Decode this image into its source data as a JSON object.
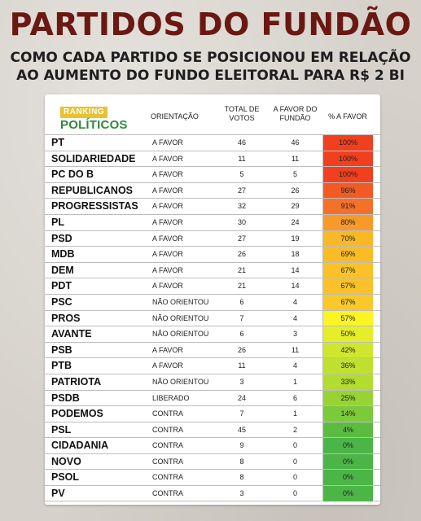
{
  "title": "PARTIDOS DO FUNDÃO",
  "subtitle_line1": "COMO CADA PARTIDO SE POSICIONOU EM RELAÇÃO",
  "subtitle_line2": "AO AUMENTO DO FUNDO ELEITORAL PARA R$ 2 BI",
  "logo": {
    "top": "RANKING",
    "bottom": "POLÍTICOS"
  },
  "headers": {
    "orientation": "ORIENTAÇÃO",
    "total_line1": "TOTAL DE",
    "total_line2": "VOTOS",
    "favor_line1": "A FAVOR DO",
    "favor_line2": "FUNDÃO",
    "percent": "% A FAVOR"
  },
  "rows": [
    {
      "party": "PT",
      "orientation": "A FAVOR",
      "total": "46",
      "favor": "46",
      "percent": "100%",
      "color": "#f0401f"
    },
    {
      "party": "SOLIDARIEDADE",
      "orientation": "A FAVOR",
      "total": "11",
      "favor": "11",
      "percent": "100%",
      "color": "#f0401f"
    },
    {
      "party": "PC DO B",
      "orientation": "A FAVOR",
      "total": "5",
      "favor": "5",
      "percent": "100%",
      "color": "#f0401f"
    },
    {
      "party": "REPUBLICANOS",
      "orientation": "A FAVOR",
      "total": "27",
      "favor": "26",
      "percent": "96%",
      "color": "#f25a24"
    },
    {
      "party": "PROGRESSISTAS",
      "orientation": "A FAVOR",
      "total": "32",
      "favor": "29",
      "percent": "91%",
      "color": "#f4712a"
    },
    {
      "party": "PL",
      "orientation": "A FAVOR",
      "total": "30",
      "favor": "24",
      "percent": "80%",
      "color": "#f79a2a"
    },
    {
      "party": "PSD",
      "orientation": "A FAVOR",
      "total": "27",
      "favor": "19",
      "percent": "70%",
      "color": "#f9b826"
    },
    {
      "party": "MDB",
      "orientation": "A FAVOR",
      "total": "26",
      "favor": "18",
      "percent": "69%",
      "color": "#f9bc27"
    },
    {
      "party": "DEM",
      "orientation": "A FAVOR",
      "total": "21",
      "favor": "14",
      "percent": "67%",
      "color": "#fac228"
    },
    {
      "party": "PDT",
      "orientation": "A FAVOR",
      "total": "21",
      "favor": "14",
      "percent": "67%",
      "color": "#fac228"
    },
    {
      "party": "PSC",
      "orientation": "NÃO ORIENTOU",
      "total": "6",
      "favor": "4",
      "percent": "67%",
      "color": "#fac828"
    },
    {
      "party": "PROS",
      "orientation": "NÃO ORIENTOU",
      "total": "7",
      "favor": "4",
      "percent": "57%",
      "color": "#fdf424"
    },
    {
      "party": "AVANTE",
      "orientation": "NÃO ORIENTOU",
      "total": "6",
      "favor": "3",
      "percent": "50%",
      "color": "#e6ee2a"
    },
    {
      "party": "PSB",
      "orientation": "A FAVOR",
      "total": "26",
      "favor": "11",
      "percent": "42%",
      "color": "#cfe62e"
    },
    {
      "party": "PTB",
      "orientation": "A FAVOR",
      "total": "11",
      "favor": "4",
      "percent": "36%",
      "color": "#bfe02f"
    },
    {
      "party": "PATRIOTA",
      "orientation": "NÃO ORIENTOU",
      "total": "3",
      "favor": "1",
      "percent": "33%",
      "color": "#b2dc30"
    },
    {
      "party": "PSDB",
      "orientation": "LIBERADO",
      "total": "24",
      "favor": "6",
      "percent": "25%",
      "color": "#96d333"
    },
    {
      "party": "PODEMOS",
      "orientation": "CONTRA",
      "total": "7",
      "favor": "1",
      "percent": "14%",
      "color": "#7cc93a"
    },
    {
      "party": "PSL",
      "orientation": "CONTRA",
      "total": "45",
      "favor": "2",
      "percent": "4%",
      "color": "#5cbc42"
    },
    {
      "party": "CIDADANIA",
      "orientation": "CONTRA",
      "total": "9",
      "favor": "0",
      "percent": "0%",
      "color": "#4cb548"
    },
    {
      "party": "NOVO",
      "orientation": "CONTRA",
      "total": "8",
      "favor": "0",
      "percent": "0%",
      "color": "#4cb548"
    },
    {
      "party": "PSOL",
      "orientation": "CONTRA",
      "total": "8",
      "favor": "0",
      "percent": "0%",
      "color": "#4cb548"
    },
    {
      "party": "PV",
      "orientation": "CONTRA",
      "total": "3",
      "favor": "0",
      "percent": "0%",
      "color": "#4cb548"
    }
  ]
}
